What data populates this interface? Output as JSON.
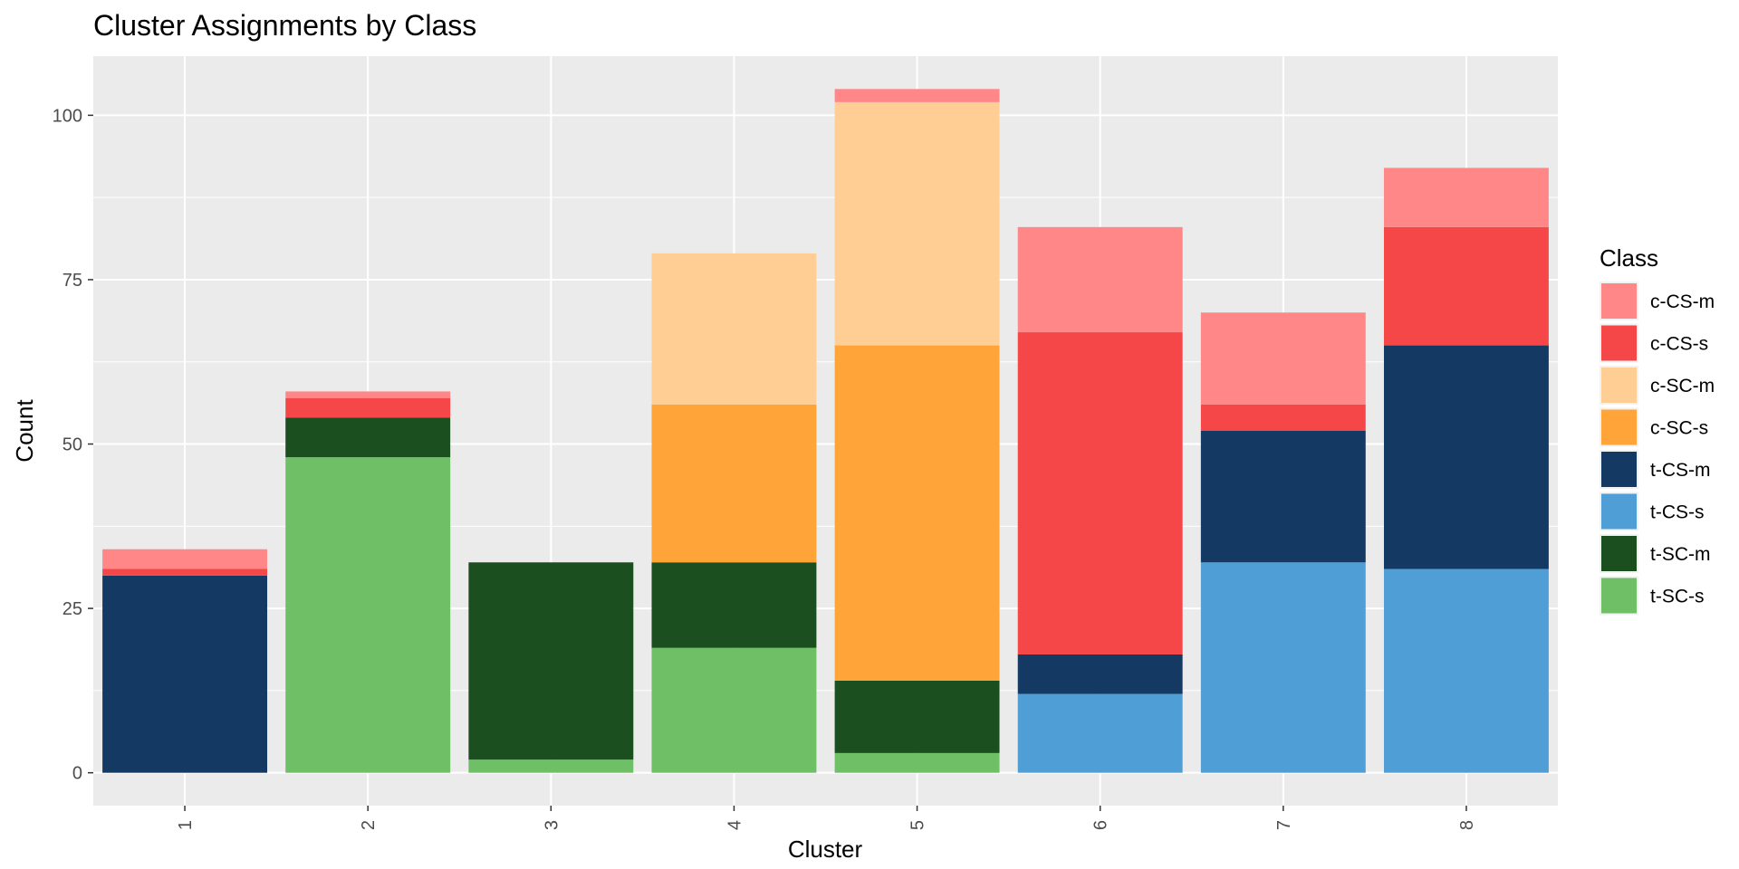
{
  "chart_data": {
    "type": "bar",
    "stacked": true,
    "title": "Cluster Assignments by Class",
    "xlabel": "Cluster",
    "ylabel": "Count",
    "categories": [
      "1",
      "2",
      "3",
      "4",
      "5",
      "6",
      "7",
      "8"
    ],
    "ylim": [
      -5,
      109
    ],
    "yticks": [
      0,
      25,
      50,
      75,
      100
    ],
    "grid": true,
    "legend": {
      "title": "Class",
      "position": "right"
    },
    "series": [
      {
        "name": "c-CS-m",
        "color": "#FF8787",
        "values": [
          3,
          1,
          0,
          0,
          2,
          16,
          14,
          9
        ]
      },
      {
        "name": "c-CS-s",
        "color": "#F54748",
        "values": [
          1,
          3,
          0,
          0,
          0,
          49,
          4,
          18
        ]
      },
      {
        "name": "c-SC-m",
        "color": "#FFCE94",
        "values": [
          0,
          0,
          0,
          23,
          37,
          0,
          0,
          0
        ]
      },
      {
        "name": "c-SC-s",
        "color": "#FFA438",
        "values": [
          0,
          0,
          0,
          24,
          51,
          0,
          0,
          0
        ]
      },
      {
        "name": "t-CS-m",
        "color": "#143962",
        "values": [
          30,
          0,
          0,
          0,
          0,
          6,
          20,
          34
        ]
      },
      {
        "name": "t-CS-s",
        "color": "#4F9FD6",
        "values": [
          0,
          0,
          0,
          0,
          0,
          12,
          32,
          31
        ]
      },
      {
        "name": "t-SC-m",
        "color": "#1B4F1F",
        "values": [
          0,
          6,
          30,
          13,
          11,
          0,
          0,
          0
        ]
      },
      {
        "name": "t-SC-s",
        "color": "#6FBF67",
        "values": [
          0,
          48,
          2,
          19,
          3,
          0,
          0,
          0
        ]
      }
    ]
  }
}
